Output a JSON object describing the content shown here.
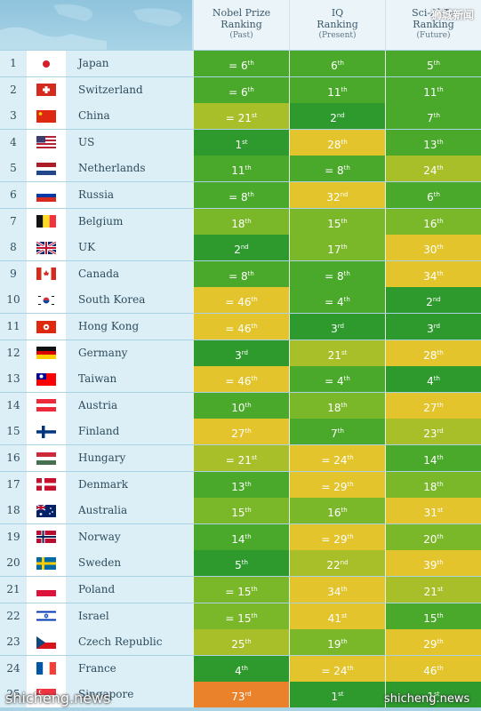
{
  "header": {
    "col1": {
      "line1": "Nobel Prize",
      "line2": "Ranking",
      "sub": "(Past)"
    },
    "col2": {
      "line1": "IQ",
      "line2": "Ranking",
      "sub": "(Present)"
    },
    "col3": {
      "line1": "Sci-Al-Te",
      "line2": "Ranking",
      "sub": "(Future)"
    },
    "watermark": "狮城新闻"
  },
  "colors": {
    "dark_green": "#2e9a2e",
    "green": "#4aa82a",
    "light_green": "#7ab82a",
    "olive": "#a8bf2a",
    "yellow": "#e3c42c",
    "orange": "#e9822a"
  },
  "rows": [
    {
      "rank": "1",
      "country": "Japan",
      "flag": "japan-flag",
      "nobel": {
        "t": "= 6",
        "s": "th",
        "c": "green"
      },
      "iq": {
        "t": "6",
        "s": "th",
        "c": "green"
      },
      "sci": {
        "t": "5",
        "s": "th",
        "c": "green"
      }
    },
    {
      "rank": "2",
      "country": "Switzerland",
      "flag": "switzerland-flag",
      "nobel": {
        "t": "= 6",
        "s": "th",
        "c": "green"
      },
      "iq": {
        "t": "11",
        "s": "th",
        "c": "green"
      },
      "sci": {
        "t": "11",
        "s": "th",
        "c": "green"
      }
    },
    {
      "rank": "3",
      "country": "China",
      "flag": "china-flag",
      "nobel": {
        "t": "= 21",
        "s": "st",
        "c": "olive"
      },
      "iq": {
        "t": "2",
        "s": "nd",
        "c": "dark_green"
      },
      "sci": {
        "t": "7",
        "s": "th",
        "c": "green"
      }
    },
    {
      "rank": "4",
      "country": "US",
      "flag": "us-flag",
      "nobel": {
        "t": "1",
        "s": "st",
        "c": "dark_green"
      },
      "iq": {
        "t": "28",
        "s": "th",
        "c": "yellow"
      },
      "sci": {
        "t": "13",
        "s": "th",
        "c": "green"
      }
    },
    {
      "rank": "5",
      "country": "Netherlands",
      "flag": "netherlands-flag",
      "nobel": {
        "t": "11",
        "s": "th",
        "c": "green"
      },
      "iq": {
        "t": "= 8",
        "s": "th",
        "c": "green"
      },
      "sci": {
        "t": "24",
        "s": "th",
        "c": "olive"
      }
    },
    {
      "rank": "6",
      "country": "Russia",
      "flag": "russia-flag",
      "nobel": {
        "t": "= 8",
        "s": "th",
        "c": "green"
      },
      "iq": {
        "t": "32",
        "s": "nd",
        "c": "yellow"
      },
      "sci": {
        "t": "6",
        "s": "th",
        "c": "green"
      }
    },
    {
      "rank": "7",
      "country": "Belgium",
      "flag": "belgium-flag",
      "nobel": {
        "t": "18",
        "s": "th",
        "c": "light_green"
      },
      "iq": {
        "t": "15",
        "s": "th",
        "c": "light_green"
      },
      "sci": {
        "t": "16",
        "s": "th",
        "c": "light_green"
      }
    },
    {
      "rank": "8",
      "country": "UK",
      "flag": "uk-flag",
      "nobel": {
        "t": "2",
        "s": "nd",
        "c": "dark_green"
      },
      "iq": {
        "t": "17",
        "s": "th",
        "c": "light_green"
      },
      "sci": {
        "t": "30",
        "s": "th",
        "c": "yellow"
      }
    },
    {
      "rank": "9",
      "country": "Canada",
      "flag": "canada-flag",
      "nobel": {
        "t": "= 8",
        "s": "th",
        "c": "green"
      },
      "iq": {
        "t": "= 8",
        "s": "th",
        "c": "green"
      },
      "sci": {
        "t": "34",
        "s": "th",
        "c": "yellow"
      }
    },
    {
      "rank": "10",
      "country": "South Korea",
      "flag": "south-korea-flag",
      "nobel": {
        "t": "= 46",
        "s": "th",
        "c": "yellow"
      },
      "iq": {
        "t": "= 4",
        "s": "th",
        "c": "green"
      },
      "sci": {
        "t": "2",
        "s": "nd",
        "c": "dark_green"
      }
    },
    {
      "rank": "11",
      "country": "Hong Kong",
      "flag": "hong-kong-flag",
      "nobel": {
        "t": "= 46",
        "s": "th",
        "c": "yellow"
      },
      "iq": {
        "t": "3",
        "s": "rd",
        "c": "dark_green"
      },
      "sci": {
        "t": "3",
        "s": "rd",
        "c": "dark_green"
      }
    },
    {
      "rank": "12",
      "country": "Germany",
      "flag": "germany-flag",
      "nobel": {
        "t": "3",
        "s": "rd",
        "c": "dark_green"
      },
      "iq": {
        "t": "21",
        "s": "st",
        "c": "olive"
      },
      "sci": {
        "t": "28",
        "s": "th",
        "c": "yellow"
      }
    },
    {
      "rank": "13",
      "country": "Taiwan",
      "flag": "taiwan-flag",
      "nobel": {
        "t": "= 46",
        "s": "th",
        "c": "yellow"
      },
      "iq": {
        "t": "= 4",
        "s": "th",
        "c": "green"
      },
      "sci": {
        "t": "4",
        "s": "th",
        "c": "dark_green"
      }
    },
    {
      "rank": "14",
      "country": "Austria",
      "flag": "austria-flag",
      "nobel": {
        "t": "10",
        "s": "th",
        "c": "green"
      },
      "iq": {
        "t": "18",
        "s": "th",
        "c": "light_green"
      },
      "sci": {
        "t": "27",
        "s": "th",
        "c": "yellow"
      }
    },
    {
      "rank": "15",
      "country": "Finland",
      "flag": "finland-flag",
      "nobel": {
        "t": "27",
        "s": "th",
        "c": "yellow"
      },
      "iq": {
        "t": "7",
        "s": "th",
        "c": "green"
      },
      "sci": {
        "t": "23",
        "s": "rd",
        "c": "olive"
      }
    },
    {
      "rank": "16",
      "country": "Hungary",
      "flag": "hungary-flag",
      "nobel": {
        "t": "= 21",
        "s": "st",
        "c": "olive"
      },
      "iq": {
        "t": "= 24",
        "s": "th",
        "c": "yellow"
      },
      "sci": {
        "t": "14",
        "s": "th",
        "c": "green"
      }
    },
    {
      "rank": "17",
      "country": "Denmark",
      "flag": "denmark-flag",
      "nobel": {
        "t": "13",
        "s": "th",
        "c": "green"
      },
      "iq": {
        "t": "= 29",
        "s": "th",
        "c": "yellow"
      },
      "sci": {
        "t": "18",
        "s": "th",
        "c": "light_green"
      }
    },
    {
      "rank": "18",
      "country": "Australia",
      "flag": "australia-flag",
      "nobel": {
        "t": "15",
        "s": "th",
        "c": "light_green"
      },
      "iq": {
        "t": "16",
        "s": "th",
        "c": "light_green"
      },
      "sci": {
        "t": "31",
        "s": "st",
        "c": "yellow"
      }
    },
    {
      "rank": "19",
      "country": "Norway",
      "flag": "norway-flag",
      "nobel": {
        "t": "14",
        "s": "th",
        "c": "green"
      },
      "iq": {
        "t": "= 29",
        "s": "th",
        "c": "yellow"
      },
      "sci": {
        "t": "20",
        "s": "th",
        "c": "light_green"
      }
    },
    {
      "rank": "20",
      "country": "Sweden",
      "flag": "sweden-flag",
      "nobel": {
        "t": "5",
        "s": "th",
        "c": "dark_green"
      },
      "iq": {
        "t": "22",
        "s": "nd",
        "c": "olive"
      },
      "sci": {
        "t": "39",
        "s": "th",
        "c": "yellow"
      }
    },
    {
      "rank": "21",
      "country": "Poland",
      "flag": "poland-flag",
      "nobel": {
        "t": "= 15",
        "s": "th",
        "c": "light_green"
      },
      "iq": {
        "t": "34",
        "s": "th",
        "c": "yellow"
      },
      "sci": {
        "t": "21",
        "s": "st",
        "c": "olive"
      }
    },
    {
      "rank": "22",
      "country": "Israel",
      "flag": "israel-flag",
      "nobel": {
        "t": "= 15",
        "s": "th",
        "c": "light_green"
      },
      "iq": {
        "t": "41",
        "s": "st",
        "c": "yellow"
      },
      "sci": {
        "t": "15",
        "s": "th",
        "c": "green"
      }
    },
    {
      "rank": "23",
      "country": "Czech Republic",
      "flag": "czech-flag",
      "nobel": {
        "t": "25",
        "s": "th",
        "c": "olive"
      },
      "iq": {
        "t": "19",
        "s": "th",
        "c": "light_green"
      },
      "sci": {
        "t": "29",
        "s": "th",
        "c": "yellow"
      }
    },
    {
      "rank": "24",
      "country": "France",
      "flag": "france-flag",
      "nobel": {
        "t": "4",
        "s": "th",
        "c": "dark_green"
      },
      "iq": {
        "t": "= 24",
        "s": "th",
        "c": "yellow"
      },
      "sci": {
        "t": "46",
        "s": "th",
        "c": "yellow"
      }
    },
    {
      "rank": "25",
      "country": "Singapore",
      "flag": "singapore-flag",
      "nobel": {
        "t": "73",
        "s": "rd",
        "c": "orange"
      },
      "iq": {
        "t": "1",
        "s": "st",
        "c": "dark_green"
      },
      "sci": {
        "t": "1",
        "s": "st",
        "c": "dark_green"
      }
    }
  ],
  "watermarks": {
    "bottom_left": "shicheng.news",
    "bottom_right": "shicheng.news"
  }
}
